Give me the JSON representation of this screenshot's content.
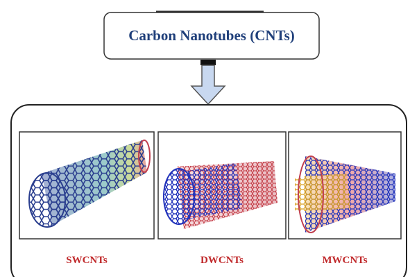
{
  "header": {
    "title": "Carbon Nanotubes (CNTs)"
  },
  "panels": [
    {
      "label": "SWCNTs"
    },
    {
      "label": "DWCNTs"
    },
    {
      "label": "MWCNTs"
    }
  ]
}
